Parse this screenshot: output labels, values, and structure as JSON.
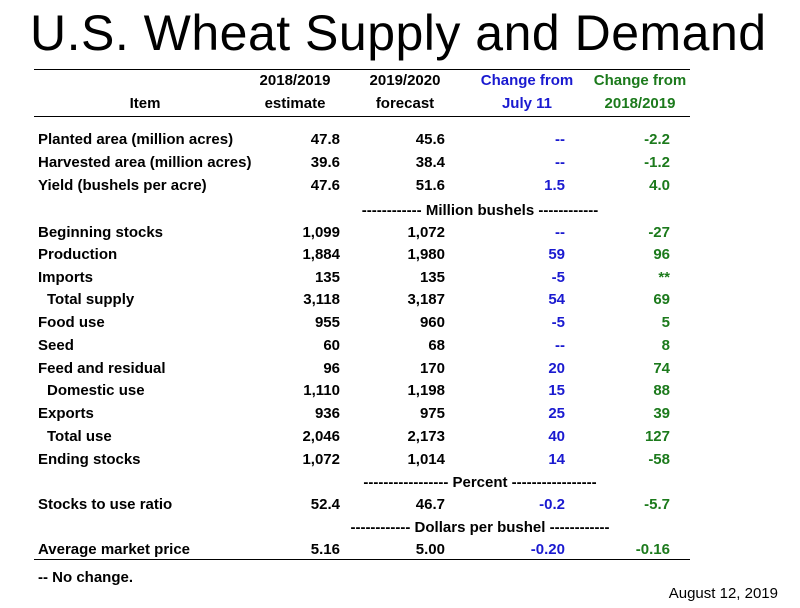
{
  "title": "U.S. Wheat Supply and Demand",
  "header": {
    "item": "Item",
    "col1_top": "2018/2019",
    "col1_bottom": "estimate",
    "col2_top": "2019/2020",
    "col2_bottom": "forecast",
    "col3_top": "Change from",
    "col3_bottom": "July 11",
    "col4_top": "Change from",
    "col4_bottom": "2018/2019"
  },
  "rows": [
    {
      "label": "Planted area (million acres)",
      "c1": "47.8",
      "c2": "45.6",
      "c3": "--",
      "c4": "-2.2"
    },
    {
      "label": "Harvested area (million acres)",
      "c1": "39.6",
      "c2": "38.4",
      "c3": "--",
      "c4": "-1.2"
    },
    {
      "label": "Yield (bushels per acre)",
      "c1": "47.6",
      "c2": "51.6",
      "c3": "1.5",
      "c4": "4.0"
    },
    {
      "label": "Beginning stocks",
      "c1": "1,099",
      "c2": "1,072",
      "c3": "--",
      "c4": "-27"
    },
    {
      "label": "Production",
      "c1": "1,884",
      "c2": "1,980",
      "c3": "59",
      "c4": "96"
    },
    {
      "label": "Imports",
      "c1": "135",
      "c2": "135",
      "c3": "-5",
      "c4": "**"
    },
    {
      "label": "Total supply",
      "c1": "3,118",
      "c2": "3,187",
      "c3": "54",
      "c4": "69"
    },
    {
      "label": "Food use",
      "c1": "955",
      "c2": "960",
      "c3": "-5",
      "c4": "5"
    },
    {
      "label": "Seed",
      "c1": "60",
      "c2": "68",
      "c3": "--",
      "c4": "8"
    },
    {
      "label": "Feed and residual",
      "c1": "96",
      "c2": "170",
      "c3": "20",
      "c4": "74"
    },
    {
      "label": "Domestic use",
      "c1": "1,110",
      "c2": "1,198",
      "c3": "15",
      "c4": "88"
    },
    {
      "label": "Exports",
      "c1": "936",
      "c2": "975",
      "c3": "25",
      "c4": "39"
    },
    {
      "label": "Total use",
      "c1": "2,046",
      "c2": "2,173",
      "c3": "40",
      "c4": "127"
    },
    {
      "label": "Ending stocks",
      "c1": "1,072",
      "c2": "1,014",
      "c3": "14",
      "c4": "-58"
    },
    {
      "label": "Stocks to use ratio",
      "c1": "52.4",
      "c2": "46.7",
      "c3": "-0.2",
      "c4": "-5.7"
    },
    {
      "label": "Average market price",
      "c1": "5.16",
      "c2": "5.00",
      "c3": "-0.20",
      "c4": "-0.16"
    }
  ],
  "units": {
    "million_bushels": "------------ Million bushels ------------",
    "percent": "----------------- Percent -----------------",
    "dollars": "------------ Dollars per bushel ------------"
  },
  "footnote": "-- No change.",
  "date": "August 12, 2019",
  "colors": {
    "blue": "#1a1ad0",
    "green": "#1c7a1c"
  }
}
